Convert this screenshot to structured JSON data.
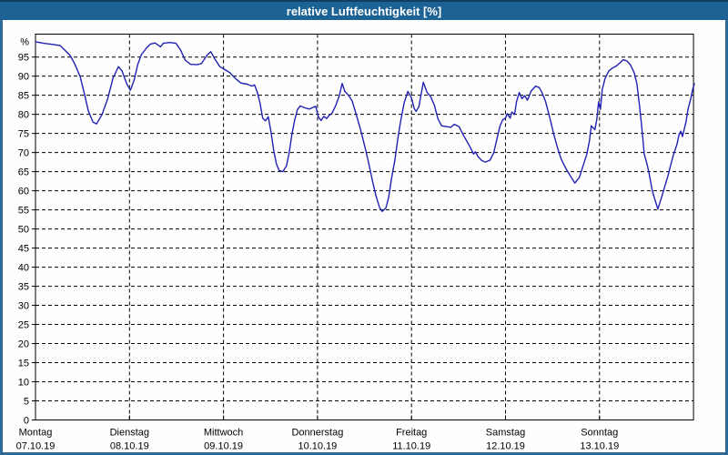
{
  "window": {
    "title": "relative Luftfeuchtigkeit [%]"
  },
  "colors": {
    "titlebar_bg": "#1d6295",
    "titlebar_top_edge": "#123f61",
    "titlebar_text": "#ffffff",
    "window_border": "#2f6996",
    "plot_bg": "#fdfefd",
    "grid": "#000000",
    "axis": "#000000",
    "line": "#2121b4",
    "label_text": "#000000"
  },
  "chart_data": {
    "type": "line",
    "title": "relative Luftfeuchtigkeit [%]",
    "ylabel": "%",
    "y_unit_label": "%",
    "ylim": [
      0,
      101
    ],
    "y_tick_step": 5,
    "y_tick_labels": [
      0,
      5,
      10,
      15,
      20,
      25,
      30,
      35,
      40,
      45,
      50,
      55,
      60,
      65,
      70,
      75,
      80,
      85,
      90,
      95
    ],
    "grid": "dashed",
    "legend_position": "none",
    "x_axis_days": [
      {
        "name": "Montag",
        "date": "07.10.19"
      },
      {
        "name": "Dienstag",
        "date": "08.10.19"
      },
      {
        "name": "Mittwoch",
        "date": "09.10.19"
      },
      {
        "name": "Donnerstag",
        "date": "10.10.19"
      },
      {
        "name": "Freitag",
        "date": "11.10.19"
      },
      {
        "name": "Samstag",
        "date": "12.10.19"
      },
      {
        "name": "Sonntag",
        "date": "13.10.19"
      }
    ],
    "series": [
      {
        "name": "relative Luftfeuchtigkeit",
        "color": "#2121b4",
        "x_unit": "days_from_monday_midnight",
        "points": [
          [
            0.0,
            99.0
          ],
          [
            0.087,
            98.6
          ],
          [
            0.184,
            98.3
          ],
          [
            0.262,
            98.0
          ],
          [
            0.32,
            96.6
          ],
          [
            0.369,
            95.4
          ],
          [
            0.417,
            93.2
          ],
          [
            0.476,
            89.8
          ],
          [
            0.524,
            85.0
          ],
          [
            0.563,
            80.8
          ],
          [
            0.612,
            78.0
          ],
          [
            0.65,
            77.5
          ],
          [
            0.709,
            80.0
          ],
          [
            0.767,
            84.0
          ],
          [
            0.825,
            89.5
          ],
          [
            0.883,
            92.5
          ],
          [
            0.922,
            91.3
          ],
          [
            0.971,
            88.0
          ],
          [
            1.01,
            86.3
          ],
          [
            1.049,
            89.0
          ],
          [
            1.087,
            93.0
          ],
          [
            1.126,
            95.6
          ],
          [
            1.175,
            97.2
          ],
          [
            1.223,
            98.4
          ],
          [
            1.272,
            98.7
          ],
          [
            1.301,
            98.2
          ],
          [
            1.33,
            97.7
          ],
          [
            1.359,
            98.6
          ],
          [
            1.427,
            98.8
          ],
          [
            1.495,
            98.6
          ],
          [
            1.544,
            96.8
          ],
          [
            1.592,
            94.2
          ],
          [
            1.65,
            93.1
          ],
          [
            1.718,
            93.0
          ],
          [
            1.767,
            93.3
          ],
          [
            1.825,
            95.5
          ],
          [
            1.864,
            96.4
          ],
          [
            1.913,
            94.3
          ],
          [
            1.961,
            92.5
          ],
          [
            2.01,
            91.8
          ],
          [
            2.068,
            90.9
          ],
          [
            2.126,
            89.4
          ],
          [
            2.184,
            88.2
          ],
          [
            2.252,
            87.9
          ],
          [
            2.301,
            87.4
          ],
          [
            2.33,
            87.7
          ],
          [
            2.359,
            85.8
          ],
          [
            2.388,
            83.0
          ],
          [
            2.417,
            79.0
          ],
          [
            2.447,
            78.3
          ],
          [
            2.476,
            79.4
          ],
          [
            2.505,
            75.4
          ],
          [
            2.534,
            70.5
          ],
          [
            2.563,
            67.0
          ],
          [
            2.592,
            65.3
          ],
          [
            2.631,
            65.0
          ],
          [
            2.67,
            66.5
          ],
          [
            2.699,
            70.0
          ],
          [
            2.728,
            74.8
          ],
          [
            2.757,
            78.5
          ],
          [
            2.786,
            81.2
          ],
          [
            2.816,
            82.2
          ],
          [
            2.864,
            81.7
          ],
          [
            2.913,
            81.4
          ],
          [
            2.951,
            81.8
          ],
          [
            2.981,
            82.1
          ],
          [
            3.01,
            79.3
          ],
          [
            3.039,
            78.4
          ],
          [
            3.068,
            79.5
          ],
          [
            3.097,
            78.9
          ],
          [
            3.126,
            79.8
          ],
          [
            3.155,
            80.3
          ],
          [
            3.194,
            82.3
          ],
          [
            3.233,
            85.0
          ],
          [
            3.262,
            88.1
          ],
          [
            3.291,
            86.0
          ],
          [
            3.33,
            85.0
          ],
          [
            3.369,
            83.5
          ],
          [
            3.408,
            80.3
          ],
          [
            3.456,
            76.2
          ],
          [
            3.505,
            71.4
          ],
          [
            3.544,
            67.3
          ],
          [
            3.583,
            62.8
          ],
          [
            3.621,
            58.8
          ],
          [
            3.66,
            55.6
          ],
          [
            3.689,
            54.6
          ],
          [
            3.728,
            55.5
          ],
          [
            3.757,
            58.3
          ],
          [
            3.786,
            63.0
          ],
          [
            3.825,
            68.3
          ],
          [
            3.854,
            73.5
          ],
          [
            3.883,
            78.0
          ],
          [
            3.922,
            83.0
          ],
          [
            3.961,
            86.0
          ],
          [
            4.0,
            84.3
          ],
          [
            4.029,
            81.5
          ],
          [
            4.049,
            80.8
          ],
          [
            4.078,
            82.0
          ],
          [
            4.097,
            84.5
          ],
          [
            4.126,
            88.4
          ],
          [
            4.165,
            85.8
          ],
          [
            4.204,
            84.6
          ],
          [
            4.243,
            82.4
          ],
          [
            4.282,
            78.8
          ],
          [
            4.32,
            77.0
          ],
          [
            4.369,
            76.8
          ],
          [
            4.417,
            76.6
          ],
          [
            4.456,
            77.4
          ],
          [
            4.505,
            76.8
          ],
          [
            4.553,
            74.5
          ],
          [
            4.602,
            72.4
          ],
          [
            4.641,
            70.6
          ],
          [
            4.66,
            69.6
          ],
          [
            4.68,
            70.2
          ],
          [
            4.709,
            68.9
          ],
          [
            4.748,
            67.9
          ],
          [
            4.786,
            67.5
          ],
          [
            4.835,
            68.0
          ],
          [
            4.874,
            69.9
          ],
          [
            4.913,
            74.0
          ],
          [
            4.942,
            77.0
          ],
          [
            4.971,
            78.6
          ],
          [
            5.0,
            79.0
          ],
          [
            5.019,
            80.2
          ],
          [
            5.049,
            79.0
          ],
          [
            5.068,
            80.6
          ],
          [
            5.097,
            80.0
          ],
          [
            5.117,
            83.3
          ],
          [
            5.146,
            85.7
          ],
          [
            5.175,
            84.1
          ],
          [
            5.204,
            84.9
          ],
          [
            5.233,
            83.7
          ],
          [
            5.272,
            86.1
          ],
          [
            5.32,
            87.4
          ],
          [
            5.359,
            87.0
          ],
          [
            5.388,
            85.7
          ],
          [
            5.427,
            83.3
          ],
          [
            5.476,
            78.6
          ],
          [
            5.515,
            74.6
          ],
          [
            5.553,
            71.3
          ],
          [
            5.592,
            68.3
          ],
          [
            5.641,
            65.9
          ],
          [
            5.689,
            63.9
          ],
          [
            5.738,
            62.0
          ],
          [
            5.786,
            63.5
          ],
          [
            5.825,
            66.5
          ],
          [
            5.864,
            69.5
          ],
          [
            5.893,
            73.0
          ],
          [
            5.913,
            77.0
          ],
          [
            5.951,
            76.0
          ],
          [
            5.971,
            78.6
          ],
          [
            5.99,
            83.3
          ],
          [
            6.01,
            81.3
          ],
          [
            6.029,
            86.5
          ],
          [
            6.058,
            89.3
          ],
          [
            6.097,
            91.3
          ],
          [
            6.136,
            92.1
          ],
          [
            6.175,
            92.6
          ],
          [
            6.214,
            93.4
          ],
          [
            6.252,
            94.3
          ],
          [
            6.291,
            94.0
          ],
          [
            6.33,
            92.9
          ],
          [
            6.369,
            90.9
          ],
          [
            6.398,
            88.0
          ],
          [
            6.427,
            82.0
          ],
          [
            6.456,
            75.0
          ],
          [
            6.476,
            69.5
          ],
          [
            6.505,
            67.0
          ],
          [
            6.524,
            65.0
          ],
          [
            6.563,
            59.8
          ],
          [
            6.621,
            55.2
          ],
          [
            6.66,
            58.3
          ],
          [
            6.689,
            60.7
          ],
          [
            6.728,
            63.9
          ],
          [
            6.757,
            66.7
          ],
          [
            6.786,
            69.4
          ],
          [
            6.825,
            72.2
          ],
          [
            6.845,
            74.6
          ],
          [
            6.864,
            75.6
          ],
          [
            6.883,
            74.2
          ],
          [
            6.893,
            75.2
          ],
          [
            6.922,
            78.2
          ],
          [
            6.942,
            81.4
          ],
          [
            6.971,
            84.1
          ],
          [
            6.99,
            86.5
          ],
          [
            7.01,
            88.0
          ]
        ]
      }
    ]
  }
}
